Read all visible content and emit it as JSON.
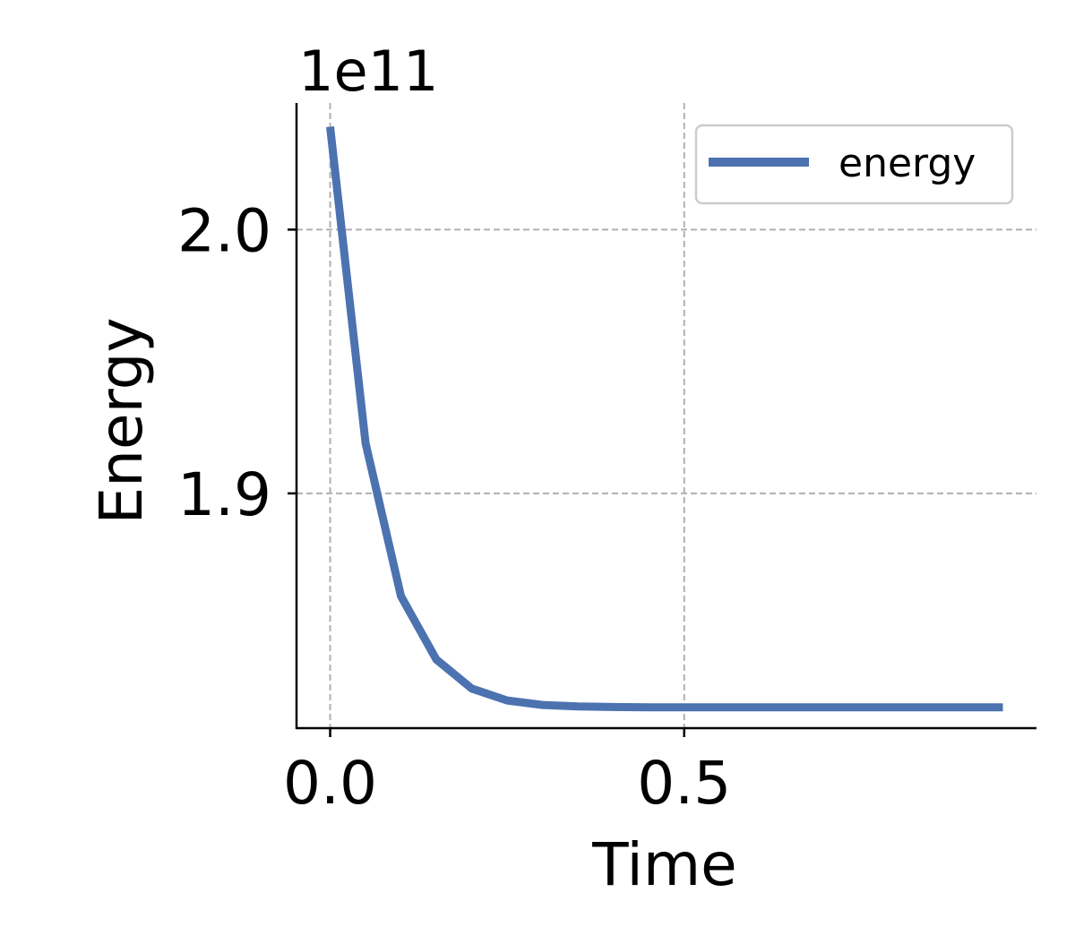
{
  "chart_data": {
    "type": "line",
    "title": "",
    "xlabel": "Time",
    "ylabel": "Energy",
    "offset_text": "1e11",
    "scale": 100000000000,
    "xlim": [
      -0.0475,
      0.9975
    ],
    "ylim": [
      1.811,
      2.048
    ],
    "x_ticks": [
      0.0,
      0.5
    ],
    "x_tick_labels": [
      "0.0",
      "0.5"
    ],
    "y_ticks": [
      1.9,
      2.0
    ],
    "y_tick_labels": [
      "1.9",
      "2.0"
    ],
    "grid": true,
    "legend_position": "top-right",
    "colors": {
      "line": "#4c72b0",
      "grid": "#b0b0b0",
      "axis": "#000000"
    },
    "series": [
      {
        "name": "energy",
        "x": [
          0.0,
          0.05,
          0.1,
          0.15,
          0.2,
          0.25,
          0.3,
          0.35,
          0.4,
          0.45,
          0.5,
          0.55,
          0.6,
          0.65,
          0.7,
          0.75,
          0.8,
          0.85,
          0.9,
          0.95
        ],
        "values": [
          2.039,
          1.919,
          1.861,
          1.837,
          1.826,
          1.8215,
          1.8198,
          1.8192,
          1.819,
          1.8189,
          1.8189,
          1.8189,
          1.8189,
          1.8189,
          1.8189,
          1.8189,
          1.8189,
          1.8189,
          1.8189,
          1.8189
        ]
      }
    ]
  }
}
